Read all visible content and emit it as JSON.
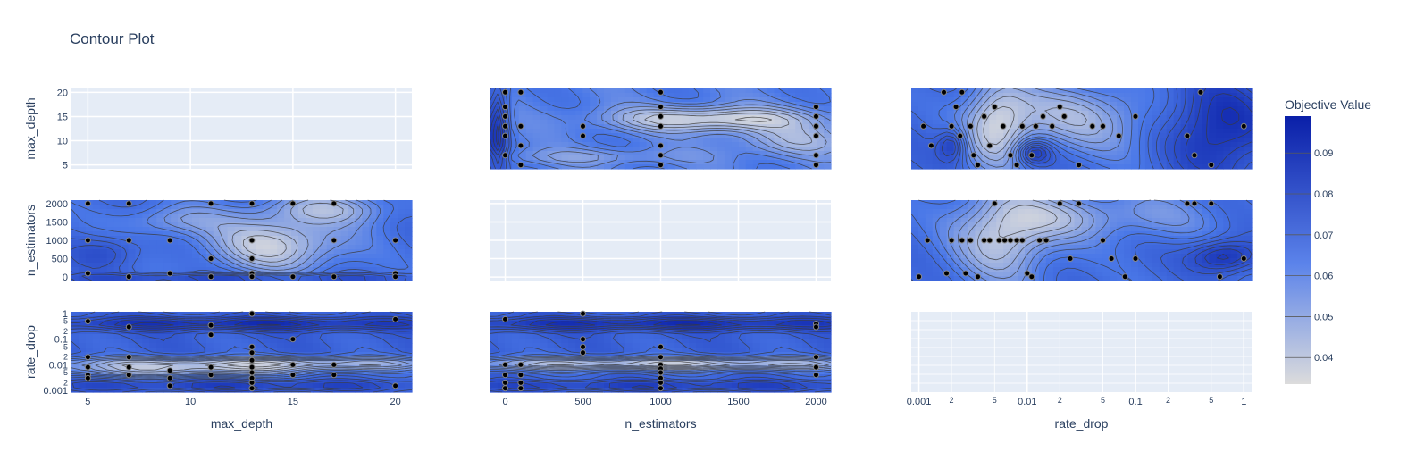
{
  "chart_data": {
    "type": "contour",
    "title": "Contour Plot",
    "colorbar": {
      "title": "Objective Value",
      "range": [
        0.0335,
        0.099
      ],
      "ticks": [
        "0.04",
        "0.05",
        "0.06",
        "0.07",
        "0.08",
        "0.09"
      ],
      "colors": [
        "#dcdcdc",
        "#4a78e8",
        "#0a1fa8"
      ]
    },
    "params": {
      "max_depth": {
        "label": "max_depth",
        "range": [
          4.2,
          20.8
        ],
        "log": false,
        "ticks": [
          "5",
          "10",
          "15",
          "20"
        ]
      },
      "n_estimators": {
        "label": "n_estimators",
        "range": [
          -95,
          2095
        ],
        "log": false,
        "ticks": [
          "0",
          "500",
          "1000",
          "1500",
          "2000"
        ],
        "yticks": [
          "0",
          "500",
          "1000",
          "1500",
          "2000"
        ]
      },
      "rate_drop": {
        "label": "rate_drop",
        "range": [
          0.00085,
          1.18
        ],
        "log": true,
        "ticks": [
          "0.001",
          "0.01",
          "0.1",
          "1"
        ],
        "minor": [
          "2",
          "5",
          "2",
          "5",
          "2",
          "5"
        ]
      }
    },
    "grid_rows": [
      "max_depth",
      "n_estimators",
      "rate_drop"
    ],
    "grid_cols": [
      "max_depth",
      "n_estimators",
      "rate_drop"
    ],
    "points": {
      "max_depth__n_estimators": [
        [
          5,
          2000
        ],
        [
          5,
          1000
        ],
        [
          5,
          100
        ],
        [
          7,
          2000
        ],
        [
          7,
          1000
        ],
        [
          7,
          10
        ],
        [
          9,
          1000
        ],
        [
          9,
          100
        ],
        [
          11,
          2000
        ],
        [
          11,
          500
        ],
        [
          11,
          10
        ],
        [
          13,
          2000
        ],
        [
          13,
          1000
        ],
        [
          13,
          500
        ],
        [
          13,
          100
        ],
        [
          13,
          10
        ],
        [
          15,
          2000
        ],
        [
          15,
          10
        ],
        [
          17,
          2000
        ],
        [
          17,
          1000
        ],
        [
          17,
          10
        ],
        [
          20,
          1000
        ],
        [
          20,
          100
        ],
        [
          20,
          10
        ]
      ],
      "max_depth__rate_drop": [
        [
          5,
          0.5
        ],
        [
          5,
          0.02
        ],
        [
          5,
          0.008
        ],
        [
          5,
          0.004
        ],
        [
          5,
          0.003
        ],
        [
          7,
          0.3
        ],
        [
          7,
          0.02
        ],
        [
          7,
          0.008
        ],
        [
          7,
          0.004
        ],
        [
          9,
          0.006
        ],
        [
          9,
          0.003
        ],
        [
          9,
          0.0015
        ],
        [
          11,
          0.35
        ],
        [
          11,
          0.15
        ],
        [
          11,
          0.008
        ],
        [
          11,
          0.004
        ],
        [
          13,
          1.0
        ],
        [
          13,
          0.05
        ],
        [
          13,
          0.03
        ],
        [
          13,
          0.015
        ],
        [
          13,
          0.008
        ],
        [
          13,
          0.005
        ],
        [
          13,
          0.003
        ],
        [
          13,
          0.002
        ],
        [
          13,
          0.0012
        ],
        [
          15,
          0.1
        ],
        [
          15,
          0.01
        ],
        [
          15,
          0.004
        ],
        [
          17,
          0.01
        ],
        [
          17,
          0.004
        ],
        [
          20,
          0.6
        ],
        [
          20,
          0.0015
        ]
      ],
      "n_estimators__max_depth": [
        [
          0,
          20
        ],
        [
          0,
          17
        ],
        [
          0,
          15
        ],
        [
          0,
          13
        ],
        [
          0,
          11
        ],
        [
          0,
          7
        ],
        [
          100,
          20
        ],
        [
          100,
          13
        ],
        [
          100,
          9
        ],
        [
          100,
          5
        ],
        [
          500,
          13
        ],
        [
          500,
          11
        ],
        [
          1000,
          20
        ],
        [
          1000,
          17
        ],
        [
          1000,
          15
        ],
        [
          1000,
          13
        ],
        [
          1000,
          9
        ],
        [
          1000,
          7
        ],
        [
          1000,
          5
        ],
        [
          2000,
          17
        ],
        [
          2000,
          15
        ],
        [
          2000,
          13
        ],
        [
          2000,
          11
        ],
        [
          2000,
          7
        ],
        [
          2000,
          5
        ]
      ],
      "n_estimators__rate_drop": [
        [
          0,
          0.6
        ],
        [
          0,
          0.01
        ],
        [
          0,
          0.004
        ],
        [
          0,
          0.002
        ],
        [
          0,
          0.0012
        ],
        [
          100,
          0.01
        ],
        [
          100,
          0.004
        ],
        [
          100,
          0.002
        ],
        [
          100,
          0.0012
        ],
        [
          500,
          1.0
        ],
        [
          500,
          0.1
        ],
        [
          500,
          0.05
        ],
        [
          500,
          0.03
        ],
        [
          1000,
          0.05
        ],
        [
          1000,
          0.02
        ],
        [
          1000,
          0.01
        ],
        [
          1000,
          0.007
        ],
        [
          1000,
          0.005
        ],
        [
          1000,
          0.003
        ],
        [
          1000,
          0.002
        ],
        [
          1000,
          0.0012
        ],
        [
          2000,
          0.4
        ],
        [
          2000,
          0.3
        ],
        [
          2000,
          0.02
        ],
        [
          2000,
          0.008
        ],
        [
          2000,
          0.004
        ]
      ],
      "rate_drop__max_depth": [
        [
          0.0011,
          13
        ],
        [
          0.0013,
          9
        ],
        [
          0.0017,
          20
        ],
        [
          0.002,
          13
        ],
        [
          0.0022,
          17
        ],
        [
          0.0024,
          11
        ],
        [
          0.0025,
          20
        ],
        [
          0.003,
          13
        ],
        [
          0.0032,
          7
        ],
        [
          0.0035,
          5
        ],
        [
          0.004,
          15
        ],
        [
          0.0045,
          9
        ],
        [
          0.005,
          17
        ],
        [
          0.006,
          13
        ],
        [
          0.007,
          7
        ],
        [
          0.008,
          5
        ],
        [
          0.009,
          13
        ],
        [
          0.011,
          7
        ],
        [
          0.012,
          13
        ],
        [
          0.014,
          15
        ],
        [
          0.017,
          13
        ],
        [
          0.02,
          17
        ],
        [
          0.022,
          15
        ],
        [
          0.03,
          5
        ],
        [
          0.04,
          13
        ],
        [
          0.05,
          13
        ],
        [
          0.07,
          11
        ],
        [
          0.1,
          15
        ],
        [
          0.3,
          11
        ],
        [
          0.35,
          7
        ],
        [
          0.4,
          20
        ],
        [
          0.5,
          5
        ],
        [
          1.0,
          13
        ]
      ],
      "rate_drop__n_estimators": [
        [
          0.001,
          10
        ],
        [
          0.0012,
          1000
        ],
        [
          0.0018,
          100
        ],
        [
          0.002,
          1000
        ],
        [
          0.0025,
          1000
        ],
        [
          0.0027,
          100
        ],
        [
          0.003,
          1000
        ],
        [
          0.0035,
          10
        ],
        [
          0.004,
          1000
        ],
        [
          0.0045,
          1000
        ],
        [
          0.005,
          2000
        ],
        [
          0.0055,
          1000
        ],
        [
          0.0062,
          1000
        ],
        [
          0.007,
          1000
        ],
        [
          0.008,
          1000
        ],
        [
          0.009,
          1000
        ],
        [
          0.01,
          100
        ],
        [
          0.011,
          10
        ],
        [
          0.013,
          1000
        ],
        [
          0.015,
          1000
        ],
        [
          0.02,
          2000
        ],
        [
          0.025,
          500
        ],
        [
          0.03,
          2000
        ],
        [
          0.05,
          1000
        ],
        [
          0.06,
          500
        ],
        [
          0.08,
          10
        ],
        [
          0.1,
          500
        ],
        [
          0.3,
          2000
        ],
        [
          0.35,
          2000
        ],
        [
          0.5,
          2000
        ],
        [
          0.6,
          10
        ],
        [
          1.0,
          500
        ]
      ]
    },
    "surfaces": {
      "max_depth__n_estimators": {
        "base": 0.068,
        "blobs": [
          [
            0.6,
            0.45,
            0.2,
            0.35,
            -0.03
          ],
          [
            0.3,
            0.75,
            0.15,
            0.2,
            -0.015
          ],
          [
            0.75,
            0.9,
            0.2,
            0.2,
            -0.02
          ],
          [
            0.1,
            0.35,
            0.1,
            0.2,
            0.012
          ],
          [
            0.5,
            0.03,
            0.6,
            0.05,
            0.02
          ]
        ]
      },
      "max_depth__rate_drop": {
        "base": 0.072,
        "blobs": [
          [
            0.5,
            0.35,
            0.7,
            0.08,
            -0.035
          ],
          [
            0.3,
            0.25,
            0.4,
            0.06,
            -0.02
          ],
          [
            0.5,
            0.85,
            0.7,
            0.08,
            0.022
          ],
          [
            0.5,
            0.08,
            0.6,
            0.06,
            0.015
          ]
        ]
      },
      "n_estimators__max_depth": {
        "base": 0.062,
        "blobs": [
          [
            0.65,
            0.62,
            0.3,
            0.15,
            -0.028
          ],
          [
            0.9,
            0.35,
            0.2,
            0.2,
            -0.015
          ],
          [
            0.02,
            0.5,
            0.03,
            0.6,
            0.03
          ],
          [
            0.3,
            0.15,
            0.3,
            0.1,
            -0.01
          ]
        ]
      },
      "n_estimators__rate_drop": {
        "base": 0.072,
        "blobs": [
          [
            0.5,
            0.35,
            0.8,
            0.08,
            -0.035
          ],
          [
            0.5,
            0.85,
            0.8,
            0.08,
            0.022
          ],
          [
            0.5,
            0.08,
            0.8,
            0.06,
            0.015
          ]
        ]
      },
      "rate_drop__max_depth": {
        "base": 0.07,
        "blobs": [
          [
            0.25,
            0.55,
            0.1,
            0.6,
            -0.03
          ],
          [
            0.45,
            0.7,
            0.2,
            0.4,
            -0.018
          ],
          [
            0.36,
            0.2,
            0.05,
            0.15,
            0.025
          ],
          [
            0.12,
            0.3,
            0.04,
            0.2,
            0.02
          ],
          [
            0.9,
            0.5,
            0.15,
            0.6,
            0.025
          ],
          [
            0.6,
            0.5,
            0.2,
            0.5,
            -0.01
          ]
        ]
      },
      "rate_drop__n_estimators": {
        "base": 0.068,
        "blobs": [
          [
            0.27,
            0.6,
            0.14,
            0.6,
            -0.03
          ],
          [
            0.45,
            0.8,
            0.15,
            0.3,
            -0.015
          ],
          [
            0.92,
            0.3,
            0.1,
            0.2,
            0.025
          ],
          [
            0.7,
            0.8,
            0.2,
            0.3,
            -0.012
          ]
        ]
      }
    }
  }
}
